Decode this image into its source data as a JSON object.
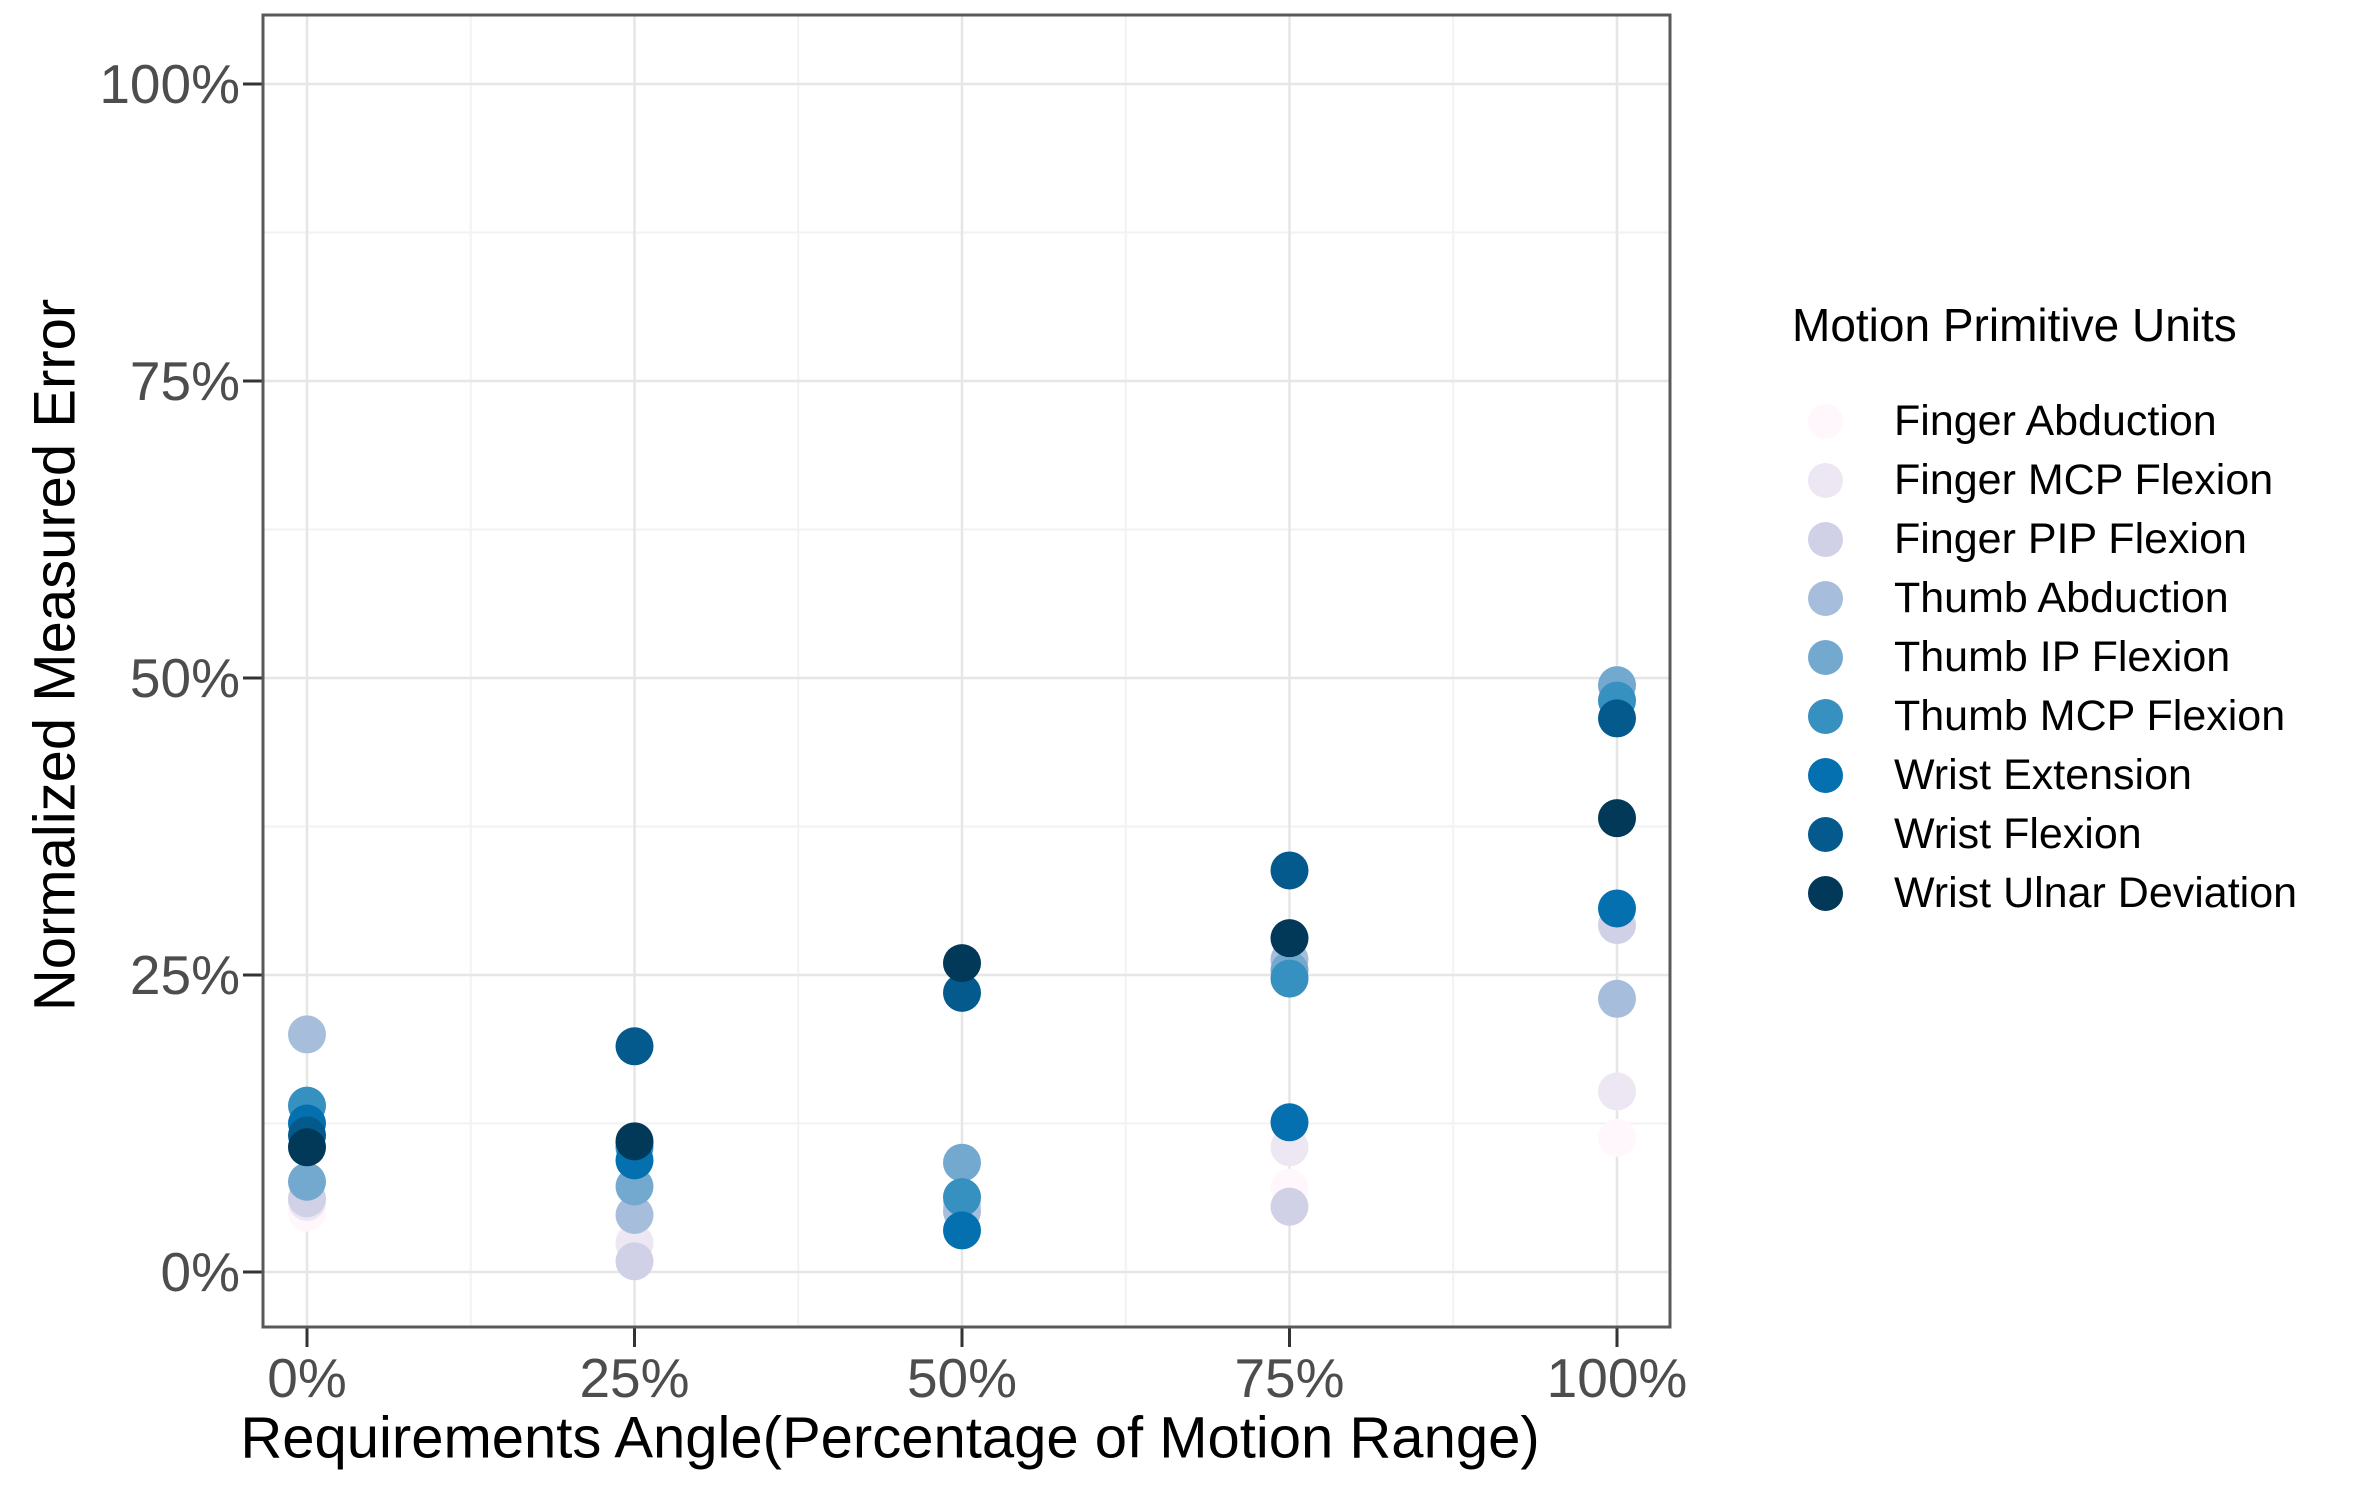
{
  "figure": {
    "background": "#ffffff",
    "panel_border_color": "#595959",
    "grid_major_color": "#e6e6e6",
    "grid_minor_color": "#f2f2f2",
    "tick_color": "#333333",
    "tick_label_color": "#4d4d4d",
    "axis_title_color": "#000000"
  },
  "chart_data": {
    "type": "scatter",
    "title": "",
    "xlabel": "Requirements Angle(Percentage of Motion Range)",
    "ylabel": "Normalized Measured Error",
    "x_tick_labels": [
      "0%",
      "25%",
      "50%",
      "75%",
      "100%"
    ],
    "y_tick_labels": [
      "0%",
      "25%",
      "50%",
      "75%",
      "100%"
    ],
    "x_values_percent": [
      0,
      25,
      50,
      75,
      100
    ],
    "xlim": [
      -3.4,
      104
    ],
    "ylim": [
      -4.6,
      105.8
    ],
    "grid": "major+minor",
    "legend_position": "right",
    "legend_title": "Motion Primitive Units",
    "series": [
      {
        "name": "Finger Abduction",
        "color": "#fff7fb",
        "values": [
          5.0,
          2.7,
          5.3,
          7.1,
          11.3
        ]
      },
      {
        "name": "Finger MCP Flexion",
        "color": "#ece7f2",
        "values": [
          5.9,
          2.4,
          5.5,
          10.5,
          15.2
        ]
      },
      {
        "name": "Finger PIP Flexion",
        "color": "#d0d1e6",
        "values": [
          6.2,
          0.9,
          5.8,
          5.5,
          29.2
        ]
      },
      {
        "name": "Thumb Abduction",
        "color": "#a6bddb",
        "values": [
          20.0,
          4.8,
          5.1,
          26.3,
          23.0
        ]
      },
      {
        "name": "Thumb IP Flexion",
        "color": "#74a9cf",
        "values": [
          7.6,
          7.2,
          9.2,
          25.4,
          49.4
        ]
      },
      {
        "name": "Thumb MCP Flexion",
        "color": "#3690c0",
        "values": [
          14.0,
          10.5,
          6.3,
          24.7,
          48.1
        ]
      },
      {
        "name": "Wrist Extension",
        "color": "#0570b0",
        "values": [
          12.5,
          9.4,
          3.5,
          12.6,
          30.6
        ]
      },
      {
        "name": "Wrist Flexion",
        "color": "#045a8d",
        "values": [
          11.5,
          19.0,
          23.5,
          33.8,
          46.6
        ]
      },
      {
        "name": "Wrist Ulnar Deviation",
        "color": "#023858",
        "values": [
          10.5,
          11.0,
          26.0,
          28.1,
          38.2
        ]
      }
    ]
  }
}
